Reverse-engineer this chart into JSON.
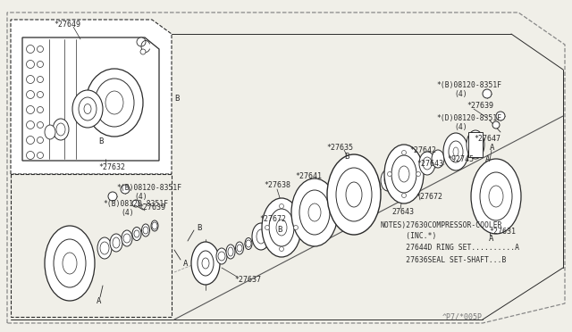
{
  "bg_color": "#f0efe8",
  "line_color": "#2a2a2a",
  "fig_w": 6.4,
  "fig_h": 3.72,
  "dpi": 100,
  "notes": [
    "NOTES)27630COMPRESSOR-COOLER",
    "      (INC.*)",
    "      27644D RING SET..........A",
    "      27636SEAL SET-SHAFT...B"
  ],
  "watermark": "^P7/*005P"
}
